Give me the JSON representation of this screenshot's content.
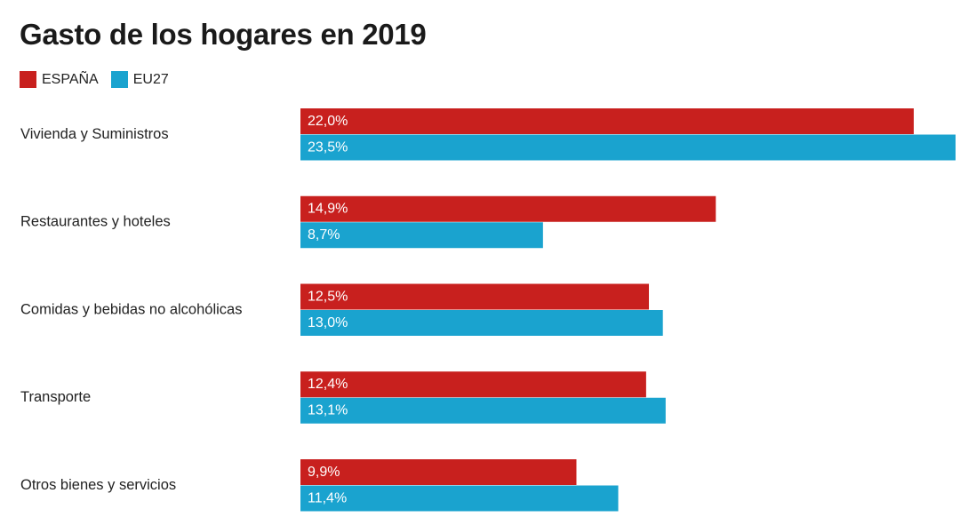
{
  "chart_data": {
    "type": "bar",
    "orientation": "horizontal",
    "title": "Gasto de los hogares en 2019",
    "xlabel": "",
    "ylabel": "",
    "xlim": [
      0,
      23.5
    ],
    "grid": false,
    "legend_position": "top-left",
    "categories": [
      "Vivienda y Suministros",
      "Restaurantes y hoteles",
      "Comidas y bebidas no alcohólicas",
      "Transporte",
      "Otros bienes y servicios"
    ],
    "series": [
      {
        "name": "ESPAÑA",
        "color": "#c8201e",
        "values": [
          22.0,
          14.9,
          12.5,
          12.4,
          9.9
        ],
        "labels": [
          "22,0%",
          "14,9%",
          "12,5%",
          "12,4%",
          "9,9%"
        ]
      },
      {
        "name": "EU27",
        "color": "#1aa3cf",
        "values": [
          23.5,
          8.7,
          13.0,
          13.1,
          11.4
        ],
        "labels": [
          "23,5%",
          "8,7%",
          "13,0%",
          "13,1%",
          "11,4%"
        ]
      }
    ]
  }
}
